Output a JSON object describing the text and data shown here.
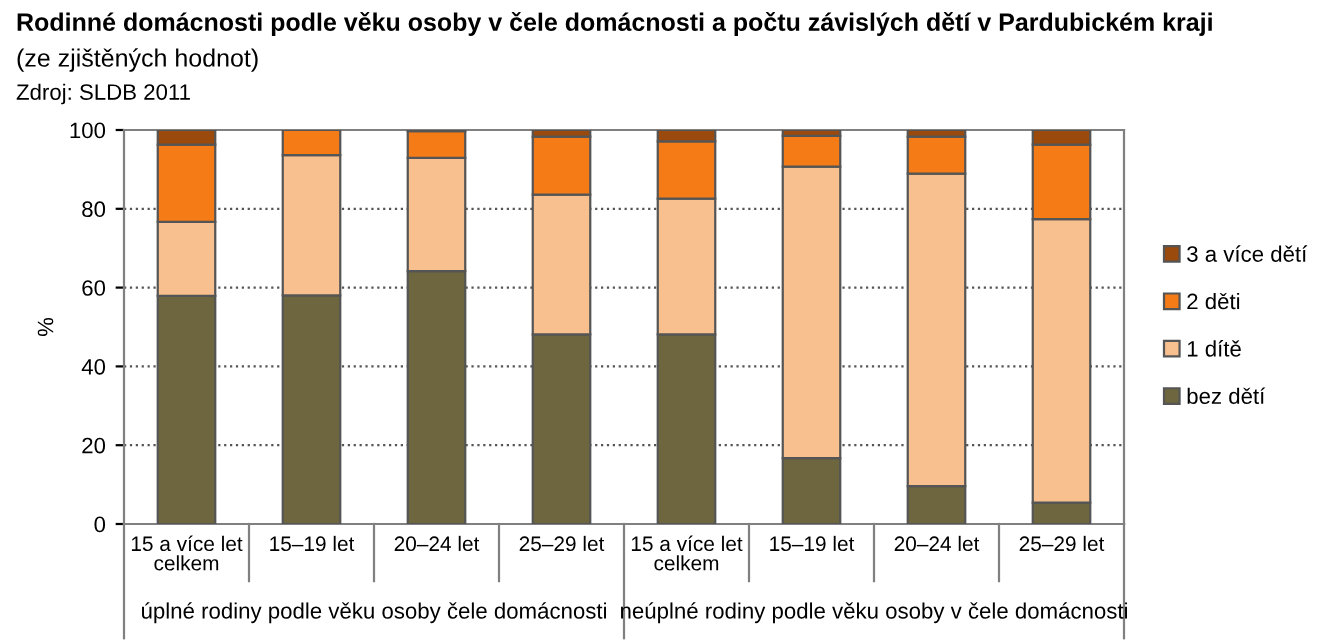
{
  "chart_data": {
    "type": "bar",
    "stacked": true,
    "title": "Rodinné domácnosti podle věku osoby v čele domácnosti a počtu závislých dětí v Pardubickém kraji",
    "subtitle": "(ze zjištěných hodnot)",
    "annotations": [
      "Zdroj: SLDB 2011",
      "úplné rodiny podle věku osoby čele domácnosti",
      "neúplné rodiny podle věku osoby v čele domácnosti"
    ],
    "ylabel": "%",
    "categories": [
      "15 a více let\ncelkem",
      "15–19 let",
      "20–24 let",
      "25–29 let",
      "15 a více let\ncelkem",
      "15–19 let",
      "20–24 let",
      "25–29 let"
    ],
    "series": [
      {
        "name": "bez dětí",
        "color": "#6e663e",
        "values": [
          57.9,
          58,
          64.2,
          48.1,
          48.1,
          16.7,
          9.6,
          5.4
        ]
      },
      {
        "name": "1 dítě",
        "color": "#f9c08f",
        "values": [
          18.8,
          35.6,
          28.7,
          35.5,
          34.5,
          74.0,
          79.3,
          72.0
        ]
      },
      {
        "name": "2 děti",
        "color": "#f47b16",
        "values": [
          19.6,
          6.4,
          6.8,
          14.7,
          14.5,
          7.8,
          9.4,
          18.9
        ]
      },
      {
        "name": "3 a více dětí",
        "color": "#9a4a0c",
        "values": [
          3.7,
          null,
          0.3,
          1.7,
          2.9,
          1.5,
          1.7,
          3.7
        ]
      }
    ],
    "ylim": [
      0,
      100
    ],
    "yticks": [
      0,
      20,
      40,
      60,
      80,
      100
    ],
    "grid": "y",
    "legend": "right"
  }
}
